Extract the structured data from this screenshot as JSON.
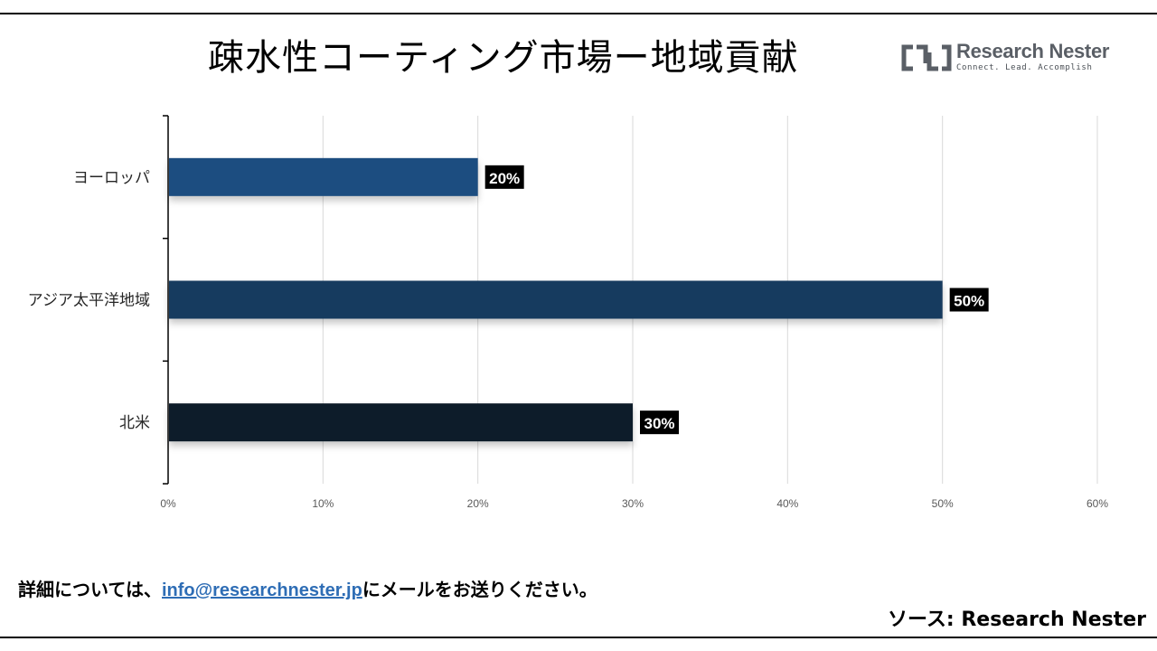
{
  "title": "疎水性コーティング市場ー地域貢献",
  "logo": {
    "name": "Research Nester",
    "tagline": "Connect. Lead. Accomplish",
    "icon": "research-nester-logo-icon"
  },
  "footer": {
    "note_prefix": "詳細については、",
    "email": "info@researchnester.jp",
    "note_suffix": "にメールをお送りください。",
    "source": "ソース: Research Nester"
  },
  "colors": {
    "bar_europe": "#1f4e80",
    "bar_apac": "#183a5e",
    "bar_north_america": "#111e2c",
    "label_bg": "#000000",
    "label_text": "#ffffff",
    "gridline": "#d9d9d9",
    "axis": "#000000"
  },
  "chart_data": {
    "type": "bar",
    "orientation": "horizontal",
    "categories": [
      "ヨーロッパ",
      "アジア太平洋地域",
      "北米"
    ],
    "values": [
      20,
      50,
      30
    ],
    "data_labels": [
      "20%",
      "50%",
      "30%"
    ],
    "xlim": [
      0,
      60
    ],
    "xticks": [
      0,
      10,
      20,
      30,
      40,
      50,
      60
    ],
    "xtick_labels": [
      "0%",
      "10%",
      "20%",
      "30%",
      "40%",
      "50%",
      "60%"
    ],
    "grid": true,
    "legend": "none"
  }
}
